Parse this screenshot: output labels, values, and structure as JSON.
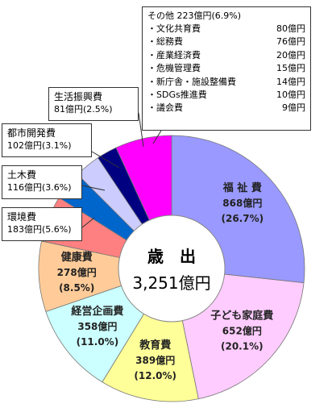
{
  "center": {
    "title": "歳　出",
    "total": "3,251億円"
  },
  "other_box": {
    "header": "その他 223億円(6.9%)",
    "items": [
      {
        "name": "・文化共育費",
        "value": "80億円"
      },
      {
        "name": "・総務費",
        "value": "76億円"
      },
      {
        "name": "・産業経済費",
        "value": "20億円"
      },
      {
        "name": "・危機管理費",
        "value": "15億円"
      },
      {
        "name": "・新庁舎・施設整備費",
        "value": "14億円"
      },
      {
        "name": "・SDGs推進費",
        "value": "10億円"
      },
      {
        "name": "・議会費",
        "value": "9億円"
      }
    ]
  },
  "chart_data": {
    "type": "pie",
    "donut": true,
    "unit": "億円",
    "total": 3251,
    "slices": [
      {
        "name": "福祉費",
        "value": 868,
        "percent": 26.7,
        "color": "#9999ff",
        "label_name": "福 祉 費",
        "label_value": "868億円",
        "label_pct": "(26.7%)"
      },
      {
        "name": "子ども家庭費",
        "value": 652,
        "percent": 20.1,
        "color": "#ffccff",
        "label_name": "子ども家庭費",
        "label_value": "652億円",
        "label_pct": "(20.1%)"
      },
      {
        "name": "教育費",
        "value": 389,
        "percent": 12.0,
        "color": "#ffff99",
        "label_name": "教育費",
        "label_value": "389億円",
        "label_pct": "(12.0%)"
      },
      {
        "name": "経営企画費",
        "value": 358,
        "percent": 11.0,
        "color": "#ccffff",
        "label_name": "経営企画費",
        "label_value": "358億円",
        "label_pct": "(11.0%)"
      },
      {
        "name": "健康費",
        "value": 278,
        "percent": 8.5,
        "color": "#ffcc99",
        "label_name": "健康費",
        "label_value": "278億円",
        "label_pct": "(8.5%)"
      },
      {
        "name": "環境費",
        "value": 183,
        "percent": 5.6,
        "color": "#ff8080",
        "label_name": "環境費",
        "label_value": "183億円(5.6%)",
        "label_pct": ""
      },
      {
        "name": "土木費",
        "value": 116,
        "percent": 3.6,
        "color": "#0066cc",
        "label_name": "土木費",
        "label_value": "116億円(3.6%)",
        "label_pct": ""
      },
      {
        "name": "都市開発費",
        "value": 102,
        "percent": 3.1,
        "color": "#ccccff",
        "label_name": "都市開発費",
        "label_value": "102億円(3.1%)",
        "label_pct": ""
      },
      {
        "name": "生活振興費",
        "value": 81,
        "percent": 2.5,
        "color": "#000080",
        "label_name": "生活振興費",
        "label_value": "81億円(2.5%)",
        "label_pct": ""
      },
      {
        "name": "その他",
        "value": 223,
        "percent": 6.9,
        "color": "#ff00ff",
        "label_name": "",
        "label_value": "",
        "label_pct": ""
      }
    ]
  }
}
